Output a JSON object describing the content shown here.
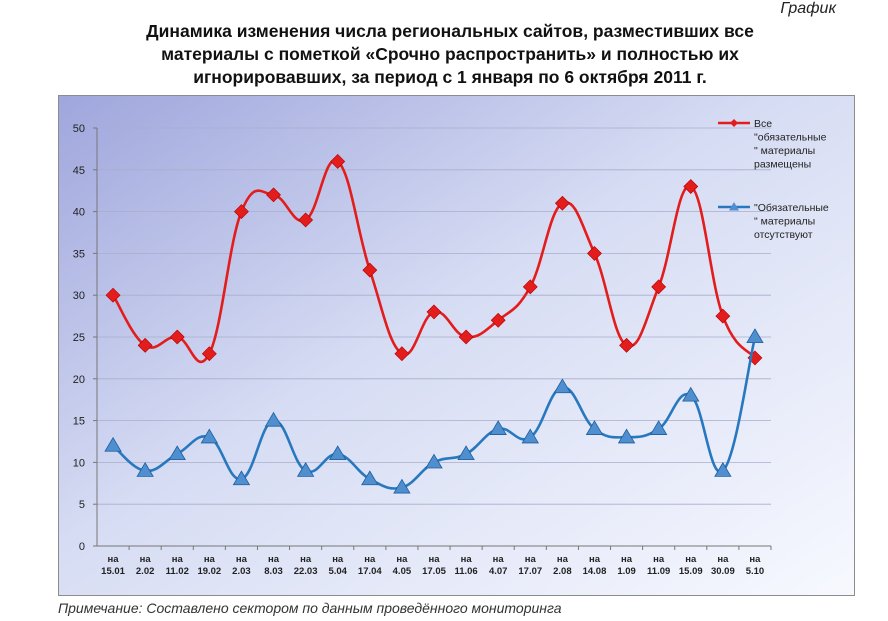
{
  "corner_label": "График",
  "title_lines": [
    "Динамика изменения числа региональных сайтов, разместивших все",
    "материалы с пометкой «Срочно распространить» и полностью их",
    "игнорировавших, за период с 1 января по 6 октября 2011 г."
  ],
  "note": "Примечание: Составлено сектором по данным проведённого мониторинга",
  "colors": {
    "series1": "#e31c1c",
    "series2": "#2878bf",
    "marker2_fill": "#4f8fd0"
  },
  "chart_data": {
    "type": "line",
    "ylim": [
      0,
      50
    ],
    "yticks": [
      "0",
      "5",
      "10",
      "15",
      "20",
      "25",
      "30",
      "35",
      "40",
      "45",
      "50"
    ],
    "grid": true,
    "legend_position": "right",
    "categories": [
      [
        "на",
        "15.01"
      ],
      [
        "на",
        "2.02"
      ],
      [
        "на",
        "11.02"
      ],
      [
        "на",
        "19.02"
      ],
      [
        "на",
        "2.03"
      ],
      [
        "на",
        "8.03"
      ],
      [
        "на",
        "22.03"
      ],
      [
        "на",
        "5.04"
      ],
      [
        "на",
        "17.04"
      ],
      [
        "на",
        "4.05"
      ],
      [
        "на",
        "17.05"
      ],
      [
        "на",
        "11.06"
      ],
      [
        "на",
        "4.07"
      ],
      [
        "на",
        "17.07"
      ],
      [
        "на",
        "2.08"
      ],
      [
        "на",
        "14.08"
      ],
      [
        "на",
        "1.09"
      ],
      [
        "на",
        "11.09"
      ],
      [
        "на",
        "15.09"
      ],
      [
        "на",
        "30.09"
      ],
      [
        "на",
        "5.10"
      ]
    ],
    "series": [
      {
        "legend_lines": [
          "Все",
          "\"обязательные",
          "\" материалы",
          "размещены"
        ],
        "values": [
          30,
          24,
          25,
          23,
          40,
          42,
          39,
          46,
          33,
          23,
          28,
          25,
          27,
          31,
          41,
          35,
          24,
          31,
          43,
          27.5,
          22.5
        ],
        "marker": "diamond"
      },
      {
        "legend_lines": [
          "\"Обязательные",
          "\" материалы",
          "отсутствуют"
        ],
        "values": [
          12,
          9,
          11,
          13,
          8,
          15,
          9,
          11,
          8,
          7,
          10,
          11,
          14,
          13,
          19,
          14,
          13,
          14,
          18,
          9,
          25
        ],
        "marker": "triangle"
      }
    ]
  }
}
